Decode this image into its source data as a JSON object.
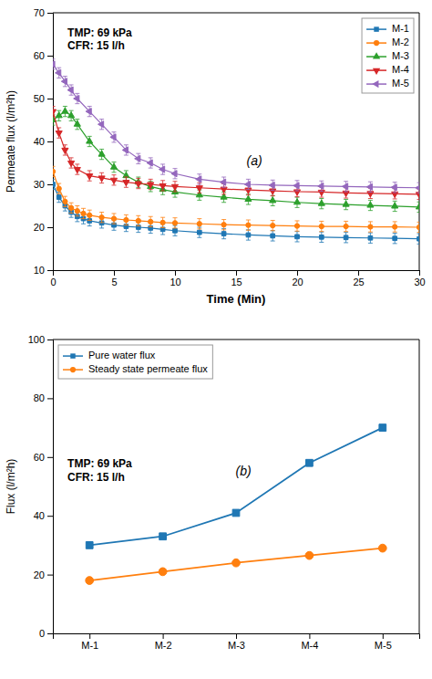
{
  "chart_data": [
    {
      "type": "line",
      "x_label": "Time (Min)",
      "y_label": "Permeate flux (l/m²h)",
      "annotations": [
        "(a)",
        "TMP: 69 kPa\nCFR: 15 l/h"
      ],
      "xlim": [
        0,
        30
      ],
      "ylim": [
        10,
        70
      ],
      "xticks": [
        0,
        5,
        10,
        15,
        20,
        25,
        30
      ],
      "yticks": [
        10,
        20,
        30,
        40,
        50,
        60,
        70
      ],
      "grid": false,
      "legend": "upper right",
      "series": [
        {
          "name": "M-1",
          "marker": "square",
          "x": [
            0,
            0.5,
            1,
            1.5,
            2,
            2.5,
            3,
            4,
            5,
            6,
            7,
            8,
            9,
            10,
            12,
            14,
            16,
            18,
            20,
            22,
            24,
            26,
            28,
            30
          ],
          "values": [
            30,
            27,
            25,
            23.5,
            22.5,
            22,
            21.5,
            21,
            20.5,
            20.2,
            20,
            19.8,
            19.5,
            19.2,
            18.8,
            18.5,
            18.2,
            18.0,
            17.8,
            17.7,
            17.6,
            17.5,
            17.4,
            17.3
          ],
          "errors": [
            1.2,
            1.2,
            1.2,
            1.2,
            1.2,
            1.2,
            1.2,
            1.2,
            1.2,
            1.2,
            1.2,
            1.2,
            1.2,
            1.2,
            1.2,
            1.2,
            1.2,
            1.2,
            1.2,
            1.2,
            1.2,
            1.2,
            1.2,
            1.2
          ]
        },
        {
          "name": "M-2",
          "marker": "circle",
          "x": [
            0,
            0.5,
            1,
            1.5,
            2,
            2.5,
            3,
            4,
            5,
            6,
            7,
            8,
            9,
            10,
            12,
            14,
            16,
            18,
            20,
            22,
            24,
            26,
            28,
            30
          ],
          "values": [
            33,
            29,
            26,
            24.5,
            23.8,
            23.2,
            22.8,
            22.3,
            22.0,
            21.7,
            21.5,
            21.3,
            21.1,
            21.0,
            20.8,
            20.6,
            20.5,
            20.4,
            20.3,
            20.2,
            20.2,
            20.1,
            20.1,
            20.0
          ],
          "errors": [
            1.2,
            1.2,
            1.2,
            1.2,
            1.2,
            1.2,
            1.2,
            1.2,
            1.2,
            1.2,
            1.2,
            1.2,
            1.2,
            1.2,
            1.2,
            1.2,
            1.2,
            1.2,
            1.2,
            1.2,
            1.2,
            1.2,
            1.2,
            1.2
          ]
        },
        {
          "name": "M-3",
          "marker": "triangle-up",
          "x": [
            0,
            0.5,
            1,
            1.5,
            2,
            3,
            4,
            5,
            6,
            7,
            8,
            9,
            10,
            12,
            14,
            16,
            18,
            20,
            22,
            24,
            26,
            28,
            30
          ],
          "values": [
            45,
            46,
            47,
            46,
            44,
            40,
            37,
            34,
            32,
            30.5,
            29.5,
            28.8,
            28.2,
            27.5,
            27.0,
            26.5,
            26.2,
            25.8,
            25.5,
            25.3,
            25.1,
            24.9,
            24.7
          ],
          "errors": [
            1.2,
            1.2,
            1.2,
            1.2,
            1.2,
            1.2,
            1.2,
            1.2,
            1.2,
            1.2,
            1.2,
            1.2,
            1.2,
            1.2,
            1.2,
            1.2,
            1.2,
            1.2,
            1.2,
            1.2,
            1.2,
            1.2,
            1.2
          ]
        },
        {
          "name": "M-4",
          "marker": "triangle-down",
          "x": [
            0,
            0.5,
            1,
            1.5,
            2,
            3,
            4,
            5,
            6,
            7,
            8,
            9,
            10,
            12,
            14,
            16,
            18,
            20,
            22,
            24,
            26,
            28,
            30
          ],
          "values": [
            47,
            42,
            38,
            35,
            33.5,
            32,
            31.5,
            31,
            30.5,
            30.2,
            30.0,
            29.7,
            29.5,
            29.2,
            28.9,
            28.7,
            28.5,
            28.3,
            28.2,
            28.0,
            27.9,
            27.8,
            27.7
          ],
          "errors": [
            1.2,
            1.2,
            1.2,
            1.2,
            1.2,
            1.2,
            1.2,
            1.2,
            1.2,
            1.2,
            1.2,
            1.2,
            1.2,
            1.2,
            1.2,
            1.2,
            1.2,
            1.2,
            1.2,
            1.2,
            1.2,
            1.2,
            1.2
          ]
        },
        {
          "name": "M-5",
          "marker": "triangle-left",
          "x": [
            0,
            0.5,
            1,
            1.5,
            2,
            3,
            4,
            5,
            6,
            7,
            8,
            9,
            10,
            12,
            14,
            16,
            18,
            20,
            22,
            24,
            26,
            28,
            30
          ],
          "values": [
            58,
            56,
            54,
            52,
            50,
            47,
            44,
            41,
            38,
            36,
            35,
            33.5,
            32.5,
            31.2,
            30.5,
            30.0,
            29.8,
            29.7,
            29.6,
            29.5,
            29.4,
            29.3,
            29.2
          ],
          "errors": [
            1.2,
            1.2,
            1.2,
            1.2,
            1.2,
            1.2,
            1.2,
            1.2,
            1.2,
            1.2,
            1.2,
            1.2,
            1.2,
            1.2,
            1.2,
            1.2,
            1.2,
            1.2,
            1.2,
            1.2,
            1.2,
            1.2,
            1.2
          ]
        }
      ]
    },
    {
      "type": "line",
      "y_label": "Flux (l/m²h)",
      "annotations": [
        "(b)",
        "TMP: 69 kPa\nCFR: 15 l/h"
      ],
      "categories": [
        "M-1",
        "M-2",
        "M-3",
        "M-4",
        "M-5"
      ],
      "ylim": [
        0,
        100
      ],
      "yticks": [
        0,
        20,
        40,
        60,
        80,
        100
      ],
      "grid": false,
      "legend": "upper left",
      "series": [
        {
          "name": "Pure water flux",
          "marker": "square",
          "values": [
            30,
            33,
            41,
            58,
            70
          ]
        },
        {
          "name": "Steady state permeate flux",
          "marker": "circle",
          "values": [
            18,
            21,
            24,
            26.5,
            29
          ]
        }
      ]
    }
  ]
}
